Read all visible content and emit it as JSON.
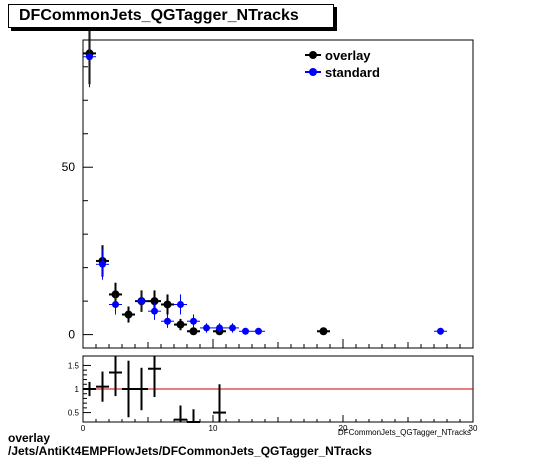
{
  "title": "DFCommonJets_QGTagger_NTracks",
  "caption": {
    "line1": "overlay",
    "line2": "/Jets/AntiKt4EMPFlowJets/DFCommonJets_QGTagger_NTracks"
  },
  "colors": {
    "overlay": "#000000",
    "standard": "#0000ff",
    "ratio_line": "#cc0000"
  },
  "chart_data": [
    {
      "type": "scatter",
      "title": "",
      "xlabel": "DFCommonJets_QGTagger_NTracks",
      "ylabel": "",
      "xlim": [
        0,
        30
      ],
      "ylim": [
        -4,
        88
      ],
      "x_ticks": [
        0,
        10,
        20,
        30
      ],
      "y_ticks": [
        0,
        50
      ],
      "grid": false,
      "legend_position": "top-right",
      "series": [
        {
          "name": "overlay",
          "x": [
            0.5,
            1.5,
            2.5,
            3.5,
            4.5,
            5.5,
            6.5,
            7.5,
            8.5,
            10.5,
            18.5
          ],
          "y": [
            84,
            22,
            12,
            6,
            10,
            10,
            9,
            3,
            1,
            1,
            1
          ],
          "yerr": [
            9.2,
            4.7,
            3.5,
            2.4,
            3.2,
            3.2,
            3.0,
            1.7,
            1.0,
            1.0,
            1.0
          ]
        },
        {
          "name": "standard",
          "x": [
            0.5,
            1.5,
            2.5,
            4.5,
            5.5,
            6.5,
            7.5,
            8.5,
            9.5,
            10.5,
            11.5,
            12.5,
            13.5,
            27.5
          ],
          "y": [
            83,
            21,
            9,
            10,
            7,
            4,
            9,
            4,
            2,
            2,
            2,
            1,
            1,
            1
          ],
          "yerr": [
            9.1,
            4.6,
            3.0,
            3.2,
            2.6,
            2.0,
            3.0,
            2.0,
            1.4,
            1.4,
            1.4,
            1.0,
            1.0,
            1.0
          ]
        }
      ]
    },
    {
      "type": "scatter",
      "title": "",
      "xlabel": "",
      "ylabel": "",
      "xlim": [
        0,
        30
      ],
      "ylim": [
        0.3,
        1.7
      ],
      "x_ticks": [
        0,
        10,
        20,
        30
      ],
      "y_ticks": [
        0.5,
        1,
        1.5
      ],
      "reference_line": 1,
      "series": [
        {
          "name": "ratio",
          "x": [
            0.5,
            1.5,
            2.5,
            3.5,
            4.5,
            5.5,
            7.5,
            8.5,
            10.5
          ],
          "y": [
            1.0,
            1.05,
            1.35,
            1.0,
            1.0,
            1.43,
            0.35,
            0.27,
            0.5
          ],
          "yerr": [
            0.15,
            0.32,
            0.5,
            0.6,
            0.45,
            0.6,
            0.3,
            0.3,
            0.6
          ]
        }
      ]
    }
  ]
}
